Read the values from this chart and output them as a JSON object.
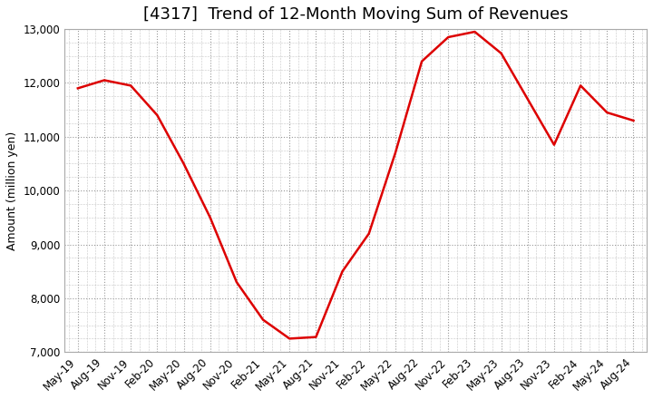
{
  "title": "[4317]  Trend of 12-Month Moving Sum of Revenues",
  "ylabel": "Amount (million yen)",
  "ylim": [
    7000,
    13000
  ],
  "yticks": [
    7000,
    8000,
    9000,
    10000,
    11000,
    12000,
    13000
  ],
  "line_color": "#dd0000",
  "background_color": "#ffffff",
  "grid_color": "#999999",
  "x_labels": [
    "May-19",
    "Aug-19",
    "Nov-19",
    "Feb-20",
    "May-20",
    "Aug-20",
    "Nov-20",
    "Feb-21",
    "May-21",
    "Aug-21",
    "Nov-21",
    "Feb-22",
    "May-22",
    "Aug-22",
    "Nov-22",
    "Feb-23",
    "May-23",
    "Aug-23",
    "Nov-23",
    "Feb-24",
    "May-24",
    "Aug-24"
  ],
  "values": [
    11900,
    12050,
    11950,
    11400,
    10500,
    9500,
    8300,
    7600,
    7250,
    7280,
    8500,
    9200,
    10700,
    12400,
    12850,
    12950,
    12550,
    11700,
    10850,
    11950,
    11450,
    11300
  ],
  "title_fontsize": 13,
  "ylabel_fontsize": 9,
  "tick_fontsize": 8.5
}
